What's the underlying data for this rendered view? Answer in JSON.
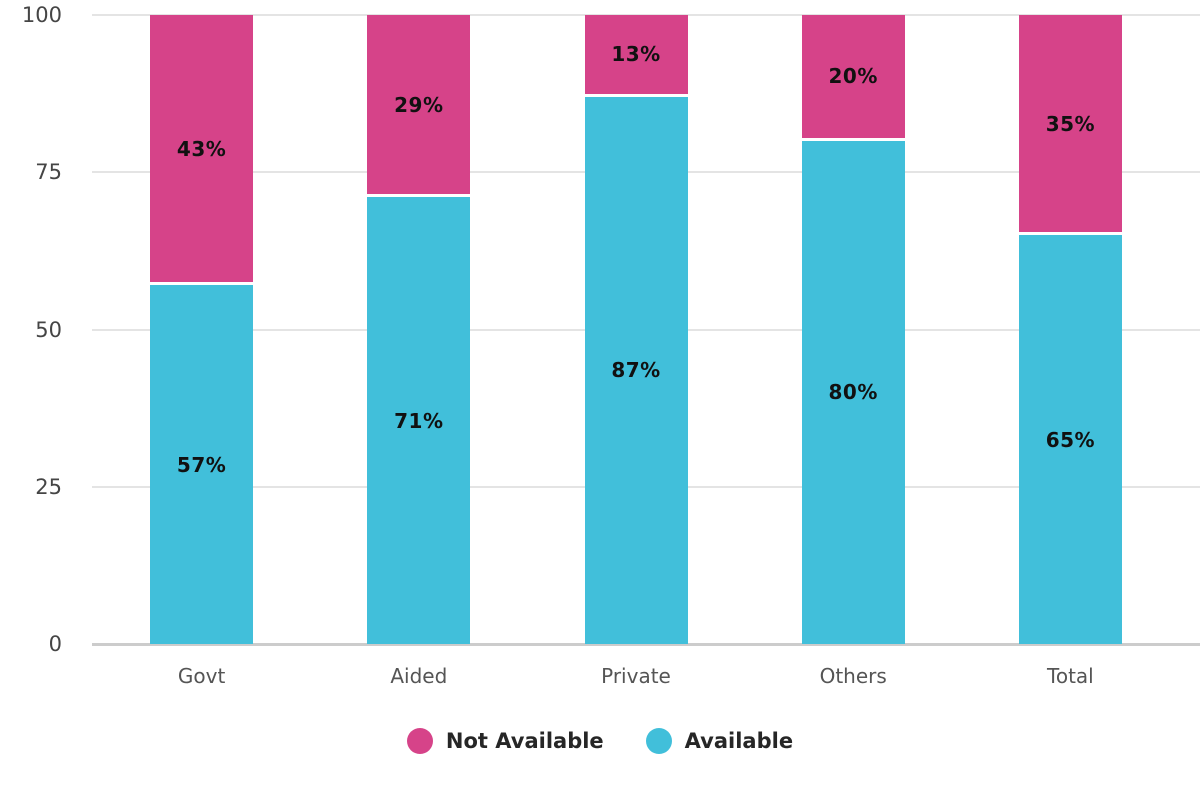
{
  "chart_data": {
    "type": "bar",
    "stacked": true,
    "orientation": "vertical",
    "categories": [
      "Govt",
      "Aided",
      "Private",
      "Others",
      "Total"
    ],
    "series": [
      {
        "name": "Not Available",
        "color": "#d64389",
        "values": [
          43,
          29,
          13,
          20,
          35
        ]
      },
      {
        "name": "Available",
        "color": "#41bfda",
        "values": [
          57,
          71,
          87,
          80,
          65
        ]
      }
    ],
    "data_labels": {
      "Not Available": [
        "43%",
        "29%",
        "13%",
        "20%",
        "35%"
      ],
      "Available": [
        "57%",
        "71%",
        "87%",
        "80%",
        "65%"
      ]
    },
    "value_suffix": "%",
    "y_ticks": [
      0,
      25,
      50,
      75,
      100
    ],
    "ylim": [
      0,
      100
    ],
    "xlabel": "",
    "ylabel": "",
    "title": "",
    "grid": true,
    "legend_position": "bottom"
  },
  "legend": {
    "items": [
      {
        "label": "Not Available",
        "color": "#d64389"
      },
      {
        "label": "Available",
        "color": "#41bfda"
      }
    ]
  },
  "colors": {
    "series_not_available": "#d64389",
    "series_available": "#41bfda",
    "gridline": "#e4e4e4",
    "axis_line": "#cccccc",
    "tick_label": "#454545",
    "category_label": "#555555",
    "data_label": "#111111",
    "legend_text": "#262626",
    "background": "#ffffff",
    "segment_gap": "#ffffff"
  }
}
